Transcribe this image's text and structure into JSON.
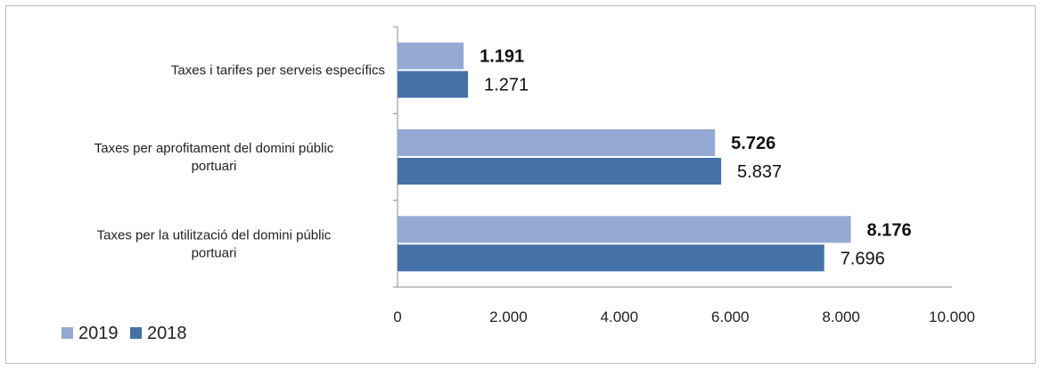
{
  "chart_data": {
    "type": "bar",
    "orientation": "horizontal",
    "categories": [
      "Taxes i tarifes per serveis específics",
      "Taxes per aprofitament del domini públic portuari",
      "Taxes per la utilització del domini públic portuari"
    ],
    "category_lines": [
      [
        "Taxes i tarifes per serveis específics"
      ],
      [
        "Taxes per aprofitament del domini públic",
        "portuari"
      ],
      [
        "Taxes per la utilització del domini públic",
        "portuari"
      ]
    ],
    "series": [
      {
        "name": "2019",
        "values": [
          1191,
          5726,
          8176
        ],
        "labels": [
          "1.191",
          "5.726",
          "8.176"
        ],
        "color": "#95a9d3",
        "bold_labels": true
      },
      {
        "name": "2018",
        "values": [
          1271,
          5837,
          7696
        ],
        "labels": [
          "1.271",
          "5.837",
          "7.696"
        ],
        "color": "#4472a8",
        "bold_labels": false
      }
    ],
    "xlim": [
      0,
      10000
    ],
    "xticks": [
      0,
      2000,
      4000,
      6000,
      8000,
      10000
    ],
    "xtick_labels": [
      "0",
      "2.000",
      "4.000",
      "6.000",
      "8.000",
      "10.000"
    ],
    "grid": false,
    "legend": {
      "placement": "bottom-left",
      "entries": [
        "2019",
        "2018"
      ]
    },
    "title": "",
    "xlabel": "",
    "ylabel": ""
  }
}
